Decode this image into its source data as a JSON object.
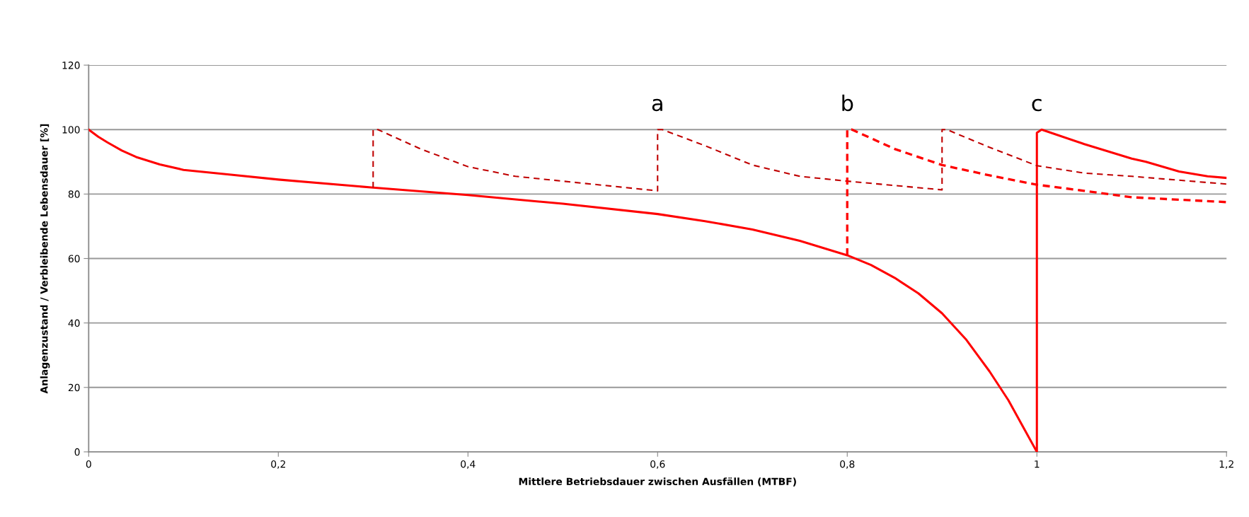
{
  "chart_data": {
    "type": "line",
    "xlabel": "Mittlere Betriebsdauer zwischen Ausfällen (MTBF)",
    "ylabel": "Anlagenzustand / Verbleibende Lebensdauer [%]",
    "xlim": [
      0,
      1.2
    ],
    "xticks": [
      0,
      {
        "value": 0.2,
        "label": "0,2"
      },
      {
        "value": 0.4,
        "label": "0,4"
      },
      {
        "value": 0.6,
        "label": "0,6"
      },
      {
        "value": 0.8,
        "label": "0,8"
      },
      1,
      {
        "value": 1.2,
        "label": "1,2"
      }
    ],
    "ylim": [
      0,
      120
    ],
    "yticks": [
      0,
      20,
      40,
      60,
      80,
      100,
      120
    ],
    "grid": "y",
    "legend": false,
    "marker": "none",
    "series": [
      {
        "color": "#ff0000",
        "line_style": "solid",
        "x": [
          0,
          0.01,
          0.02,
          0.035,
          0.05,
          0.075,
          0.1,
          0.15,
          0.2,
          0.3,
          0.4,
          0.5,
          0.6,
          0.65,
          0.7,
          0.75,
          0.8,
          0.825,
          0.85,
          0.875,
          0.9,
          0.925,
          0.95,
          0.97,
          0.985,
          1.0,
          1.0,
          1.005,
          1.05,
          1.1,
          1.115,
          1.15,
          1.18,
          1.2
        ],
        "values": [
          100,
          97.8,
          96,
          93.5,
          91.5,
          89.2,
          87.5,
          86,
          84.5,
          82,
          79.7,
          77,
          73.8,
          71.6,
          69,
          65.5,
          61,
          58,
          54,
          49.2,
          43,
          35,
          25,
          16,
          8,
          0,
          99,
          100,
          95.5,
          91,
          90,
          87,
          85.5,
          85
        ]
      },
      {
        "color": "#c00000",
        "line_style": "dashed",
        "x": [
          0.3,
          0.3,
          0.305,
          0.35,
          0.4,
          0.45,
          0.5,
          0.6,
          0.6,
          0.605,
          0.65,
          0.7,
          0.75,
          0.8,
          0.9,
          0.9,
          0.905,
          0.95,
          1.0,
          1.05,
          1.1,
          1.2
        ],
        "values": [
          82,
          100,
          100,
          94,
          88.5,
          85.5,
          84,
          81,
          100,
          100,
          95,
          89,
          85.5,
          84,
          81.3,
          100,
          100,
          94.5,
          88.8,
          86.5,
          85.5,
          83.1
        ]
      },
      {
        "color": "#ff0000",
        "line_style": "dashed",
        "x": [
          0.8,
          0.8,
          0.805,
          0.85,
          0.9,
          0.95,
          1.0,
          1.05,
          1.1,
          1.2
        ],
        "values": [
          61,
          100,
          100,
          94,
          89,
          85.8,
          82.9,
          81,
          79,
          77.5
        ]
      }
    ],
    "annotations": [
      "a",
      "b",
      "c"
    ]
  }
}
